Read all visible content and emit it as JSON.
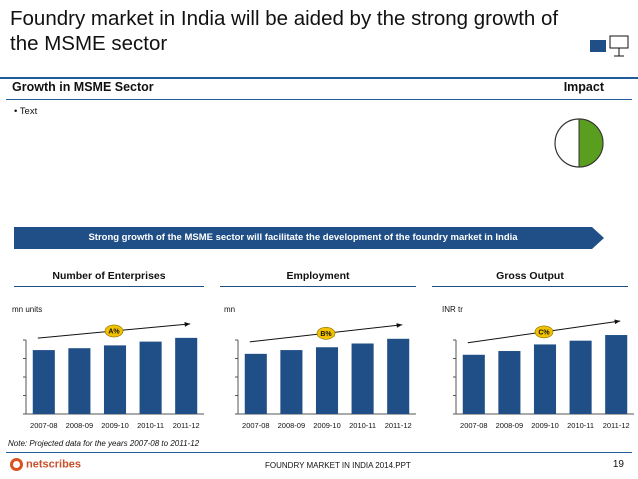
{
  "title": "Foundry market in India will be aided by the strong growth of the MSME sector",
  "section": {
    "left": "Growth in MSME Sector",
    "right": "Impact"
  },
  "bullet": "• Text",
  "banner": "Strong growth of the MSME sector will facilitate the development of the foundry market in India",
  "columns": [
    {
      "label": "Number of Enterprises",
      "unit": "mn units",
      "cagr": "A%"
    },
    {
      "label": "Employment",
      "unit": "mn",
      "cagr": "B%"
    },
    {
      "label": "Gross Output",
      "unit": "INR tr",
      "cagr": "C%"
    }
  ],
  "chart_data": [
    {
      "type": "bar",
      "categories": [
        "2007-08",
        "2008-09",
        "2009-10",
        "2010-11",
        "2011-12"
      ],
      "values": [
        68,
        70,
        73,
        77,
        81
      ],
      "ylim": [
        0,
        100
      ],
      "ylabel": "mn units",
      "annotation": "A%"
    },
    {
      "type": "bar",
      "categories": [
        "2007-08",
        "2008-09",
        "2009-10",
        "2010-11",
        "2011-12"
      ],
      "values": [
        64,
        68,
        71,
        75,
        80
      ],
      "ylim": [
        0,
        100
      ],
      "ylabel": "mn",
      "annotation": "B%"
    },
    {
      "type": "bar",
      "categories": [
        "2007-08",
        "2008-09",
        "2009-10",
        "2010-11",
        "2011-12"
      ],
      "values": [
        63,
        67,
        74,
        78,
        84
      ],
      "ylim": [
        0,
        100
      ],
      "ylabel": "INR tr",
      "annotation": "C%"
    }
  ],
  "note": "Note: Projected data for the years 2007-08 to 2011-12",
  "footer": {
    "logo": "netscribes",
    "center": "FOUNDRY MARKET IN INDIA 2014.PPT",
    "page": "19"
  },
  "colors": {
    "bar": "#1f4f86",
    "accent": "#5a9e1f",
    "badge": "#f2c200",
    "banner": "#1f4f86"
  },
  "impact_level": 0.5
}
